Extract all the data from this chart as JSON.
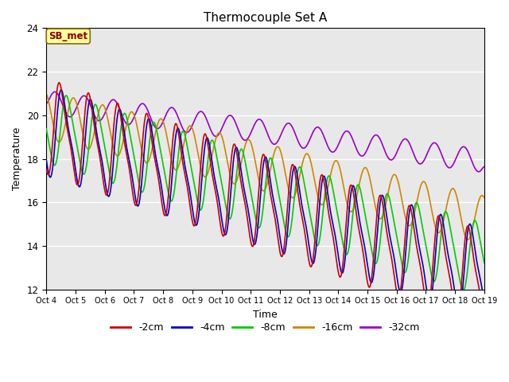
{
  "title": "Thermocouple Set A",
  "xlabel": "Time",
  "ylabel": "Temperature",
  "ylim": [
    12,
    24
  ],
  "yticks": [
    12,
    14,
    16,
    18,
    20,
    22,
    24
  ],
  "xlim_start": 0,
  "xlim_end": 15,
  "xtick_labels": [
    "Oct 4",
    "Oct 5",
    "Oct 6",
    "Oct 7",
    "Oct 8",
    "Oct 9",
    "Oct 10",
    "Oct 11",
    "Oct 12",
    "Oct 13",
    "Oct 14",
    "Oct 15",
    "Oct 16",
    "Oct 17",
    "Oct 18",
    "Oct 19"
  ],
  "series_colors": {
    "-2cm": "#cc0000",
    "-4cm": "#0000cc",
    "-8cm": "#00cc00",
    "-16cm": "#cc8800",
    "-32cm": "#9900cc"
  },
  "legend_entries": [
    "-2cm",
    "-4cm",
    "-8cm",
    "-16cm",
    "-32cm"
  ],
  "annotation_text": "SB_met",
  "background_color": "#e8e8e8",
  "figure_background": "#ffffff",
  "title_fontsize": 11
}
